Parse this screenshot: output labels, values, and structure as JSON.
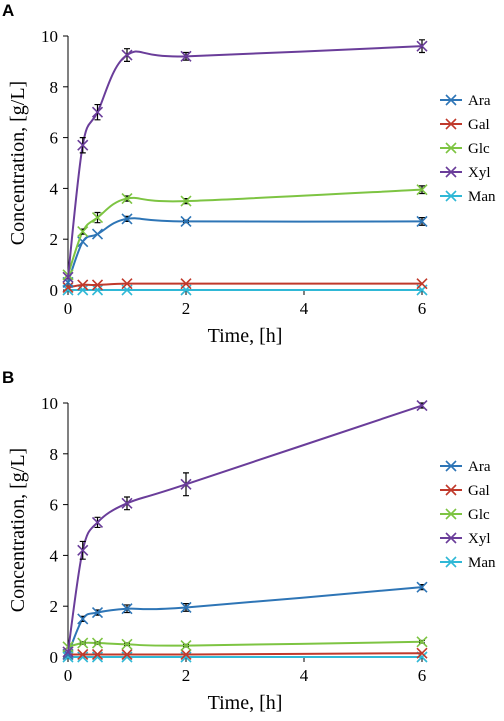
{
  "chart_data": [
    {
      "panel": "A",
      "type": "line",
      "xlabel": "Time, [h]",
      "ylabel": "Concentration, [g/L]",
      "xlim": [
        0,
        6
      ],
      "ylim": [
        0,
        10
      ],
      "xticks": [
        0,
        2,
        4,
        6
      ],
      "yticks": [
        0,
        2,
        4,
        6,
        8,
        10
      ],
      "x": [
        0,
        0.25,
        0.5,
        1,
        2,
        6
      ],
      "legend_position": "right",
      "grid": false,
      "series": [
        {
          "name": "Ara",
          "color": "#2e75b6",
          "values": [
            0.3,
            1.9,
            2.2,
            2.8,
            2.7,
            2.7
          ],
          "errors": [
            0,
            0,
            0,
            0.1,
            0.05,
            0.15
          ]
        },
        {
          "name": "Gal",
          "color": "#c0392b",
          "values": [
            0.1,
            0.2,
            0.2,
            0.25,
            0.25,
            0.25
          ],
          "errors": [
            0,
            0,
            0,
            0,
            0,
            0
          ]
        },
        {
          "name": "Glc",
          "color": "#7dc442",
          "values": [
            0.6,
            2.3,
            2.85,
            3.6,
            3.5,
            3.95
          ],
          "errors": [
            0,
            0.1,
            0.2,
            0.1,
            0.1,
            0.15
          ]
        },
        {
          "name": "Xyl",
          "color": "#6a3d9a",
          "values": [
            0.5,
            5.7,
            7.0,
            9.25,
            9.2,
            9.6
          ],
          "errors": [
            0,
            0.3,
            0.3,
            0.25,
            0.15,
            0.25
          ]
        },
        {
          "name": "Man",
          "color": "#2fb8d6",
          "values": [
            0.0,
            0.0,
            0.0,
            0.0,
            0.0,
            0.0
          ],
          "errors": [
            0,
            0,
            0,
            0,
            0,
            0
          ]
        }
      ]
    },
    {
      "panel": "B",
      "type": "line",
      "xlabel": "Time, [h]",
      "ylabel": "Concentration, [g/L]",
      "xlim": [
        0,
        6
      ],
      "ylim": [
        0,
        10
      ],
      "xticks": [
        0,
        2,
        4,
        6
      ],
      "yticks": [
        0,
        2,
        4,
        6,
        8,
        10
      ],
      "x": [
        0,
        0.25,
        0.5,
        1,
        2,
        6
      ],
      "legend_position": "right",
      "grid": false,
      "series": [
        {
          "name": "Ara",
          "color": "#2e75b6",
          "values": [
            0.1,
            1.5,
            1.75,
            1.9,
            1.95,
            2.75
          ],
          "errors": [
            0,
            0.1,
            0.1,
            0.15,
            0.15,
            0.1
          ]
        },
        {
          "name": "Gal",
          "color": "#c0392b",
          "values": [
            0.1,
            0.1,
            0.1,
            0.1,
            0.1,
            0.15
          ],
          "errors": [
            0,
            0,
            0,
            0,
            0,
            0
          ]
        },
        {
          "name": "Glc",
          "color": "#7dc442",
          "values": [
            0.4,
            0.55,
            0.55,
            0.5,
            0.45,
            0.6
          ],
          "errors": [
            0,
            0.05,
            0.05,
            0.05,
            0.05,
            0.05
          ]
        },
        {
          "name": "Xyl",
          "color": "#6a3d9a",
          "values": [
            0.2,
            4.2,
            5.3,
            6.05,
            6.8,
            9.9
          ],
          "errors": [
            0,
            0.35,
            0.2,
            0.25,
            0.45,
            0.1
          ]
        },
        {
          "name": "Man",
          "color": "#2fb8d6",
          "values": [
            0.0,
            0.0,
            0.0,
            0.0,
            0.0,
            0.0
          ],
          "errors": [
            0,
            0,
            0,
            0,
            0,
            0
          ]
        }
      ]
    }
  ]
}
